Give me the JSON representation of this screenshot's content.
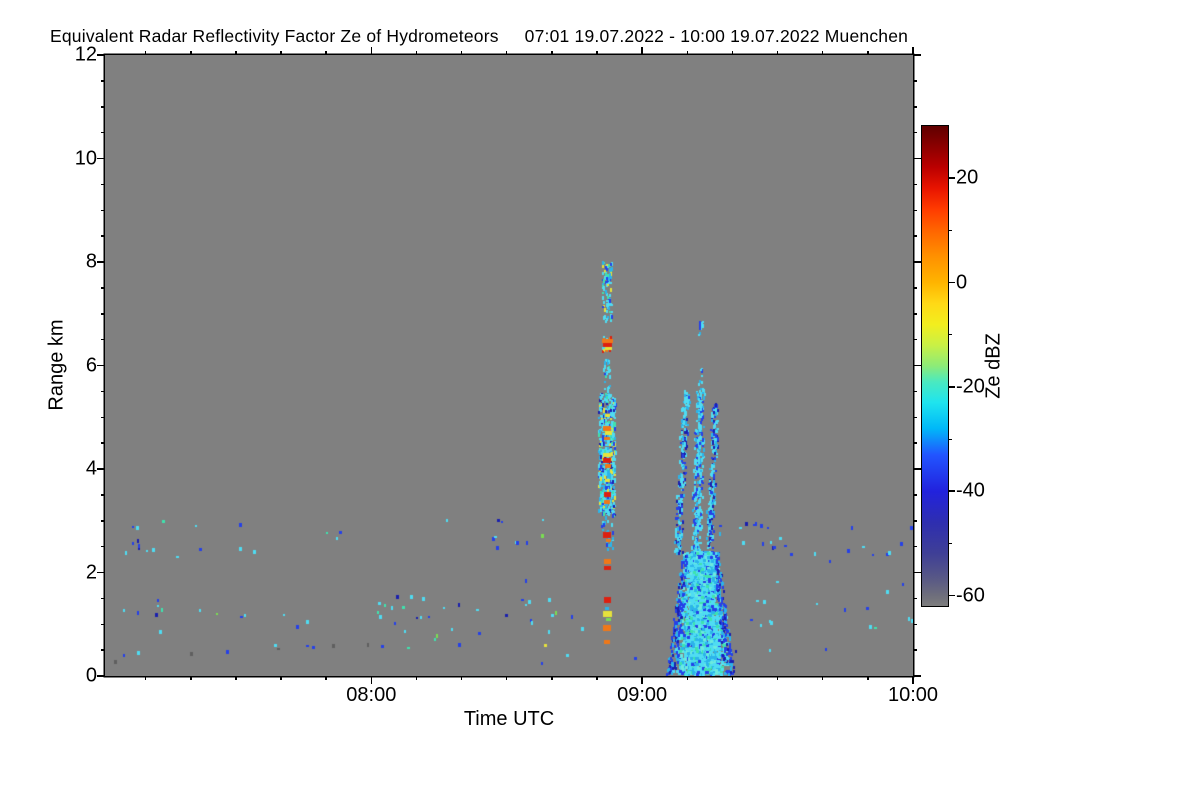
{
  "header": {
    "title": "Equivalent Radar Reflectivity Factor Ze of Hydrometeors",
    "subtitle": "07:01 19.07.2022 - 10:00 19.07.2022 Muenchen"
  },
  "chart_data": {
    "type": "heatmap",
    "title": "Equivalent Radar Reflectivity Factor Ze of Hydrometeors",
    "site": "Muenchen",
    "date": "19.07.2022",
    "time_start": "07:01",
    "time_end": "10:00",
    "xlabel": "Time UTC",
    "ylabel": "Range km",
    "x_range_hours": [
      7.0167,
      10.0
    ],
    "ylim": [
      0,
      12
    ],
    "x_ticks": [
      "08:00",
      "09:00",
      "10:00"
    ],
    "x_minor_interval_minutes": 10,
    "y_ticks": [
      0,
      2,
      4,
      6,
      8,
      10,
      12
    ],
    "y_minor_interval_km": 0.5,
    "background_color": "#808080",
    "colorbar": {
      "label": "Ze dBZ",
      "units": "dBZ",
      "ticks": [
        20,
        0,
        -20,
        -40,
        -60
      ],
      "minor_ticks": [
        10,
        -10,
        -30,
        -50
      ],
      "range": [
        -62,
        30
      ],
      "stops": [
        [
          -62,
          "#7d7d7d"
        ],
        [
          -60,
          "#6e6e7c"
        ],
        [
          -57,
          "#5a5a85"
        ],
        [
          -52,
          "#3f3f96"
        ],
        [
          -46,
          "#2e2eb0"
        ],
        [
          -40,
          "#2222dd"
        ],
        [
          -33,
          "#2255ff"
        ],
        [
          -28,
          "#00b8f8"
        ],
        [
          -23,
          "#1fe4ee"
        ],
        [
          -19,
          "#4ae9c0"
        ],
        [
          -16,
          "#8ceb78"
        ],
        [
          -12,
          "#c8f046"
        ],
        [
          -8,
          "#f2ee1e"
        ],
        [
          -4,
          "#ffd916"
        ],
        [
          0,
          "#ffb400"
        ],
        [
          5,
          "#ff9100"
        ],
        [
          10,
          "#ff6400"
        ],
        [
          14,
          "#ff3c00"
        ],
        [
          18,
          "#e81400"
        ],
        [
          22,
          "#bc0000"
        ],
        [
          26,
          "#8c0000"
        ],
        [
          30,
          "#600000"
        ]
      ]
    },
    "colors": {
      "c": "#4fdcf2",
      "s": "#2cb4ea",
      "q": "#6ceade",
      "t": "#3fe3ae",
      "g": "#7ade52",
      "y": "#e6e23c",
      "o": "#f07818",
      "r": "#dd2010",
      "b": "#2540e8",
      "d": "#1a1fae",
      "k": "#5f5f5f"
    },
    "palettes": {
      "upper": [
        "c",
        "c",
        "c",
        "c",
        "s",
        "t",
        "b",
        "y"
      ],
      "hot": [
        "o",
        "o",
        "r",
        "y",
        "c"
      ],
      "mixed": [
        "c",
        "c",
        "c",
        "c",
        "c",
        "s",
        "s",
        "t",
        "b",
        "d",
        "y"
      ],
      "cool": [
        "c",
        "c",
        "s",
        "b",
        "d"
      ],
      "cool2": [
        "c",
        "c",
        "c",
        "s",
        "b"
      ],
      "coolsparse": [
        "c",
        "s",
        "b"
      ],
      "cone": [
        "c",
        "c",
        "c",
        "c",
        "s",
        "s",
        "q",
        "b",
        "t"
      ],
      "edge": [
        "b",
        "b",
        "d",
        "s"
      ]
    },
    "cells": [
      {
        "id": "convective-cell-0852-utc",
        "segments": [
          {
            "t0": 8.854,
            "t1": 8.89,
            "a_top": 8.0,
            "a_bot": 6.85,
            "n": 90,
            "pal": "upper"
          },
          {
            "t0": 8.856,
            "t1": 8.886,
            "a_top": 6.55,
            "a_bot": 6.28,
            "n": 40,
            "pal": "hot"
          },
          {
            "t0": 8.858,
            "t1": 8.882,
            "a_top": 6.12,
            "a_bot": 5.5,
            "n": 30,
            "pal": "upper"
          },
          {
            "t0": 8.842,
            "t1": 8.902,
            "a_top": 5.45,
            "a_bot": 3.1,
            "n": 620,
            "pal": "mixed"
          },
          {
            "t0": 8.85,
            "t1": 8.894,
            "a_top": 3.1,
            "a_bot": 2.45,
            "n": 30,
            "pal": "coolsparse"
          }
        ],
        "blobs": [
          [
            8.872,
            6.47,
            "o",
            11,
            4
          ],
          [
            8.872,
            6.4,
            "r",
            9,
            4
          ],
          [
            8.873,
            6.33,
            "y",
            7,
            3
          ],
          [
            8.872,
            5.05,
            "y",
            5,
            3
          ],
          [
            8.871,
            4.8,
            "o",
            8,
            5
          ],
          [
            8.873,
            4.7,
            "y",
            7,
            4
          ],
          [
            8.872,
            4.6,
            "o",
            6,
            3
          ],
          [
            8.872,
            4.28,
            "y",
            8,
            4
          ],
          [
            8.872,
            4.17,
            "r",
            8,
            5
          ],
          [
            8.873,
            4.06,
            "o",
            6,
            4
          ],
          [
            8.871,
            3.78,
            "y",
            5,
            3
          ],
          [
            8.872,
            3.52,
            "r",
            7,
            5
          ],
          [
            8.872,
            3.36,
            "o",
            6,
            4
          ],
          [
            8.872,
            2.73,
            "r",
            8,
            6
          ],
          [
            8.873,
            2.62,
            "o",
            5,
            3
          ],
          [
            8.872,
            2.22,
            "o",
            7,
            5
          ],
          [
            8.872,
            2.09,
            "r",
            7,
            4
          ],
          [
            8.872,
            1.46,
            "r",
            7,
            6
          ],
          [
            8.871,
            1.32,
            "s",
            4,
            3
          ],
          [
            8.872,
            1.19,
            "y",
            9,
            6
          ],
          [
            8.873,
            1.1,
            "g",
            5,
            3
          ],
          [
            8.872,
            0.93,
            "o",
            8,
            6
          ],
          [
            8.872,
            0.66,
            "o",
            6,
            4
          ]
        ]
      },
      {
        "id": "precipitation-0913-utc",
        "streaks": [
          {
            "t_top": 9.165,
            "t_bot": 9.132,
            "a_top": 5.5,
            "a_bot": 2.35,
            "hw": 0.008,
            "n": 260,
            "pal": "cool"
          },
          {
            "t_top": 9.218,
            "t_bot": 9.2,
            "a_top": 5.55,
            "a_bot": 2.35,
            "hw": 0.01,
            "n": 330,
            "pal": "cool2"
          },
          {
            "t_top": 9.272,
            "t_bot": 9.248,
            "a_top": 5.25,
            "a_bot": 2.45,
            "hw": 0.008,
            "n": 230,
            "pal": "cool"
          },
          {
            "t_top": 9.222,
            "t_bot": 9.215,
            "a_top": 6.85,
            "a_bot": 6.58,
            "hw": 0.005,
            "n": 12,
            "pal": "cool2"
          },
          {
            "t_top": 9.222,
            "t_bot": 9.212,
            "a_top": 5.95,
            "a_bot": 5.6,
            "hw": 0.004,
            "n": 8,
            "pal": "cool2"
          }
        ],
        "cone": {
          "t": 9.217,
          "a_top": 2.4,
          "a_bot": 0.04,
          "hw_top": 0.055,
          "hw_bot": 0.105,
          "n": 2400
        }
      }
    ],
    "scatter": [
      [
        7.12,
        2.88,
        "b"
      ],
      [
        7.135,
        2.86,
        "c"
      ],
      [
        7.23,
        3.0,
        "t"
      ],
      [
        7.352,
        2.9,
        "c"
      ],
      [
        7.514,
        2.92,
        "b"
      ],
      [
        7.838,
        2.76,
        "t"
      ],
      [
        7.886,
        2.78,
        "b"
      ],
      [
        7.875,
        2.67,
        "c"
      ],
      [
        7.12,
        2.57,
        "b"
      ],
      [
        7.138,
        2.61,
        "d"
      ],
      [
        7.141,
        2.52,
        "b"
      ],
      [
        7.144,
        2.46,
        "d"
      ],
      [
        7.171,
        2.42,
        "c"
      ],
      [
        7.194,
        2.44,
        "c"
      ],
      [
        7.094,
        2.38,
        "c"
      ],
      [
        7.367,
        2.45,
        "b"
      ],
      [
        7.514,
        2.45,
        "c"
      ],
      [
        7.565,
        2.4,
        "c"
      ],
      [
        7.282,
        2.3,
        "c"
      ],
      [
        7.212,
        1.47,
        "b"
      ],
      [
        7.213,
        1.35,
        "c"
      ],
      [
        7.227,
        1.28,
        "t"
      ],
      [
        7.087,
        1.28,
        "c"
      ],
      [
        7.138,
        1.22,
        "b"
      ],
      [
        7.205,
        1.18,
        "d"
      ],
      [
        7.367,
        1.28,
        "c"
      ],
      [
        7.429,
        1.2,
        "g"
      ],
      [
        7.518,
        1.14,
        "b"
      ],
      [
        7.532,
        1.18,
        "c"
      ],
      [
        7.676,
        1.18,
        "c"
      ],
      [
        7.724,
        0.95,
        "b"
      ],
      [
        7.761,
        1.04,
        "c"
      ],
      [
        7.219,
        0.85,
        "c"
      ],
      [
        7.087,
        0.41,
        "b"
      ],
      [
        7.138,
        0.44,
        "c"
      ],
      [
        7.333,
        0.43,
        "k"
      ],
      [
        7.466,
        0.46,
        "b"
      ],
      [
        7.646,
        0.6,
        "c"
      ],
      [
        7.654,
        0.52,
        "k"
      ],
      [
        7.764,
        0.58,
        "b"
      ],
      [
        7.783,
        0.56,
        "b"
      ],
      [
        7.86,
        0.58,
        "k"
      ],
      [
        7.054,
        0.27,
        "k"
      ],
      [
        8.28,
        3.01,
        "c"
      ],
      [
        8.468,
        3.02,
        "d"
      ],
      [
        8.483,
        2.98,
        "b"
      ],
      [
        8.634,
        3.01,
        "c"
      ],
      [
        8.449,
        2.65,
        "b"
      ],
      [
        8.457,
        2.69,
        "c"
      ],
      [
        8.534,
        2.59,
        "c"
      ],
      [
        8.538,
        2.57,
        "b"
      ],
      [
        8.575,
        2.57,
        "b"
      ],
      [
        8.63,
        2.71,
        "g"
      ],
      [
        8.464,
        2.47,
        "b"
      ],
      [
        8.571,
        1.84,
        "b"
      ],
      [
        8.029,
        1.41,
        "c"
      ],
      [
        8.051,
        1.37,
        "t"
      ],
      [
        8.077,
        1.31,
        "c"
      ],
      [
        8.147,
        1.53,
        "c"
      ],
      [
        8.191,
        1.49,
        "c"
      ],
      [
        8.096,
        1.53,
        "d"
      ],
      [
        8.118,
        1.33,
        "t"
      ],
      [
        8.026,
        1.24,
        "t"
      ],
      [
        8.033,
        1.14,
        "c"
      ],
      [
        8.088,
        1.02,
        "b"
      ],
      [
        8.125,
        0.87,
        "c"
      ],
      [
        8.169,
        1.12,
        "d"
      ],
      [
        8.184,
        1.14,
        "c"
      ],
      [
        8.214,
        1.14,
        "b"
      ],
      [
        8.269,
        1.31,
        "c"
      ],
      [
        8.324,
        1.37,
        "d"
      ],
      [
        8.39,
        1.28,
        "c"
      ],
      [
        8.298,
        0.91,
        "c"
      ],
      [
        8.243,
        0.77,
        "g"
      ],
      [
        8.236,
        0.71,
        "t"
      ],
      [
        8.324,
        0.6,
        "b"
      ],
      [
        8.398,
        0.83,
        "b"
      ],
      [
        8.497,
        1.18,
        "d"
      ],
      [
        8.556,
        1.47,
        "b"
      ],
      [
        8.582,
        1.43,
        "c"
      ],
      [
        8.571,
        1.37,
        "c"
      ],
      [
        8.656,
        1.47,
        "c"
      ],
      [
        8.667,
        1.18,
        "c"
      ],
      [
        8.682,
        1.22,
        "g"
      ],
      [
        8.589,
        1.08,
        "b"
      ],
      [
        8.593,
        1.02,
        "c"
      ],
      [
        8.656,
        0.85,
        "c"
      ],
      [
        8.722,
        0.41,
        "c"
      ],
      [
        8.63,
        0.25,
        "b"
      ],
      [
        8.74,
        1.14,
        "b"
      ],
      [
        8.777,
        0.91,
        "c"
      ],
      [
        8.975,
        0.35,
        "b"
      ],
      [
        7.989,
        0.6,
        "k"
      ],
      [
        8.04,
        0.58,
        "b"
      ],
      [
        8.136,
        0.54,
        "t"
      ],
      [
        8.64,
        0.6,
        "y"
      ],
      [
        9.385,
        2.94,
        "d"
      ],
      [
        9.414,
        2.92,
        "b"
      ],
      [
        9.421,
        2.94,
        "b"
      ],
      [
        9.44,
        2.9,
        "b"
      ],
      [
        9.466,
        2.86,
        "b"
      ],
      [
        9.775,
        2.86,
        "b"
      ],
      [
        9.992,
        2.86,
        "b"
      ],
      [
        9.374,
        2.57,
        "c"
      ],
      [
        9.447,
        2.55,
        "b"
      ],
      [
        9.477,
        2.59,
        "c"
      ],
      [
        9.484,
        2.47,
        "d"
      ],
      [
        9.488,
        2.49,
        "b"
      ],
      [
        9.51,
        2.67,
        "c"
      ],
      [
        9.528,
        2.51,
        "b"
      ],
      [
        9.55,
        2.36,
        "b"
      ],
      [
        9.639,
        2.36,
        "c"
      ],
      [
        9.694,
        2.22,
        "b"
      ],
      [
        9.76,
        2.42,
        "b"
      ],
      [
        9.815,
        2.49,
        "c"
      ],
      [
        9.852,
        2.34,
        "b"
      ],
      [
        9.904,
        2.36,
        "b"
      ],
      [
        9.91,
        2.38,
        "c"
      ],
      [
        9.955,
        2.55,
        "b"
      ],
      [
        9.963,
        1.78,
        "b"
      ],
      [
        9.904,
        1.62,
        "c"
      ],
      [
        9.83,
        1.31,
        "b"
      ],
      [
        9.841,
        0.95,
        "c"
      ],
      [
        9.859,
        0.93,
        "t"
      ],
      [
        9.749,
        1.27,
        "b"
      ],
      [
        9.646,
        1.39,
        "c"
      ],
      [
        9.499,
        1.82,
        "c"
      ],
      [
        9.425,
        1.45,
        "c"
      ],
      [
        9.451,
        1.43,
        "c"
      ],
      [
        9.44,
        0.99,
        "c"
      ],
      [
        9.403,
        1.08,
        "b"
      ],
      [
        9.473,
        1.06,
        "c"
      ],
      [
        9.477,
        1.02,
        "c"
      ],
      [
        9.348,
        0.48,
        "d"
      ],
      [
        9.473,
        0.5,
        "c"
      ],
      [
        9.68,
        0.52,
        "b"
      ],
      [
        9.985,
        1.1,
        "c"
      ],
      [
        9.996,
        1.06,
        "c"
      ],
      [
        9.289,
        2.9,
        "b"
      ],
      [
        9.289,
        2.75,
        "s"
      ],
      [
        9.36,
        2.86,
        "c"
      ]
    ]
  }
}
